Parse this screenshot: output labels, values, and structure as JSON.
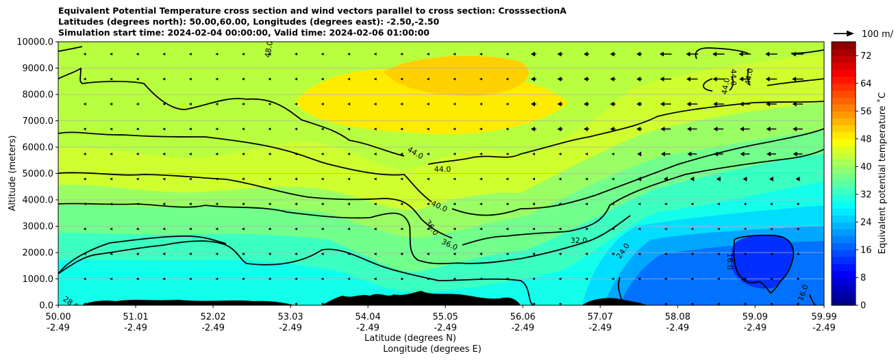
{
  "chart_data": {
    "type": "contour",
    "title": [
      "Equivalent Potential Temperature cross section and wind vectors parallel to cross section: CrosssectionA",
      "Latitudes (degrees north): 50.00,60.00, Longitudes (degrees east): -2.50,-2.50",
      "Simulation start time: 2024-02-04 00:00:00, Valid time: 2024-02-06 01:00:00"
    ],
    "ylabel": "Altitude (meters)",
    "xlabel_lat": "Latitude (degrees N)",
    "xlabel_lon": "Longitude (degrees E)",
    "xlim": [
      50.0,
      59.99
    ],
    "ylim": [
      0,
      10000
    ],
    "grid": "horizontal",
    "x_ticks": [
      {
        "lat": "50.00",
        "lon": "-2.49"
      },
      {
        "lat": "51.01",
        "lon": "-2.49"
      },
      {
        "lat": "52.02",
        "lon": "-2.49"
      },
      {
        "lat": "53.03",
        "lon": "-2.49"
      },
      {
        "lat": "54.04",
        "lon": "-2.49"
      },
      {
        "lat": "55.05",
        "lon": "-2.49"
      },
      {
        "lat": "56.06",
        "lon": "-2.49"
      },
      {
        "lat": "57.07",
        "lon": "-2.49"
      },
      {
        "lat": "58.08",
        "lon": "-2.49"
      },
      {
        "lat": "59.09",
        "lon": "-2.49"
      },
      {
        "lat": "59.99",
        "lon": "-2.49"
      }
    ],
    "y_ticks": [
      "0.0",
      "1000.0",
      "2000.0",
      "3000.0",
      "4000.0",
      "5000.0",
      "6000.0",
      "7000.0",
      "8000.0",
      "9000.0",
      "10000.0"
    ],
    "colorbar": {
      "label": "Equivalent potential temperature ˚C",
      "ticks": [
        "0",
        "8",
        "16",
        "24",
        "32",
        "40",
        "48",
        "56",
        "64",
        "72"
      ],
      "range": [
        0,
        76
      ],
      "step": 2,
      "colormap": [
        "#00007f",
        "#0000ff",
        "#007fff",
        "#00ffff",
        "#7fff7f",
        "#ffff00",
        "#ff7f00",
        "#ff0000",
        "#7f0000"
      ]
    },
    "wind_key": "100 m/",
    "contour_labels": [
      "28.0",
      "48.0",
      "44.0",
      "44.0",
      "40.0",
      "36.0",
      "36.0",
      "32.0",
      "24.0",
      "44.0",
      "44.0",
      "44.0",
      "16.0",
      "16.0"
    ]
  }
}
